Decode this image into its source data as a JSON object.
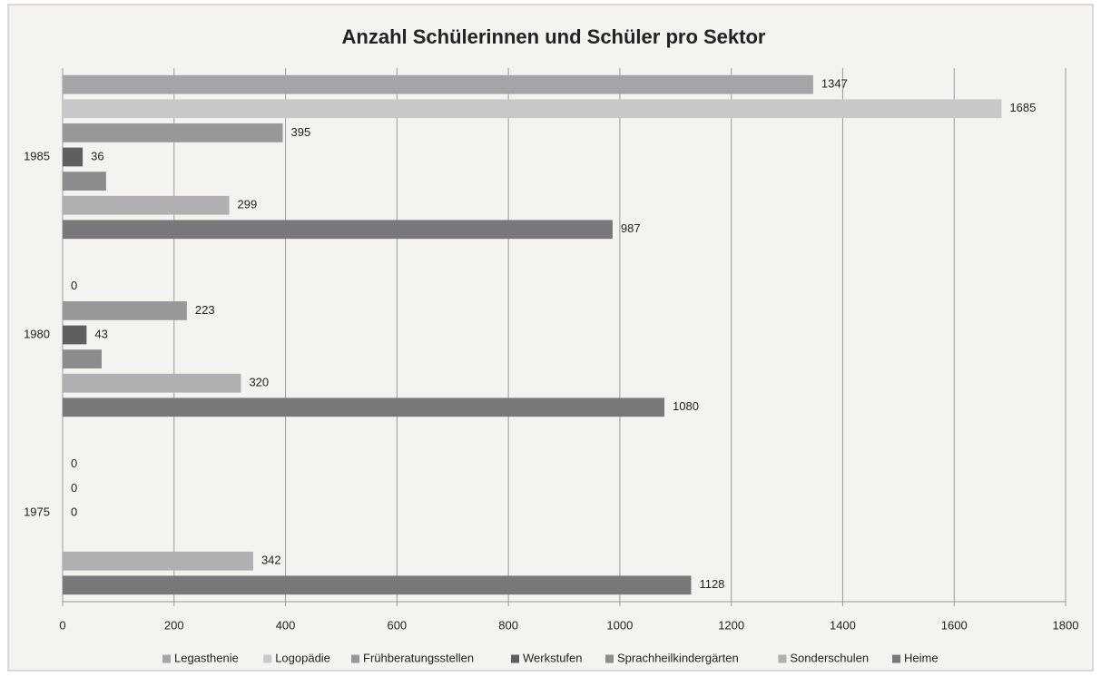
{
  "chart_data": {
    "type": "hbar",
    "title": "Anzahl Schülerinnen und Schüler pro Sektor",
    "categories": [
      "1975",
      "1980",
      "1985"
    ],
    "series": [
      {
        "name": "Legasthenie",
        "color": "#a5a5a7",
        "values": [
          null,
          null,
          1347
        ]
      },
      {
        "name": "Logopädie",
        "color": "#c8c8ca",
        "values": [
          0,
          0,
          1685
        ]
      },
      {
        "name": "Frühberatungsstellen",
        "color": "#98989a",
        "values": [
          0,
          223,
          395
        ]
      },
      {
        "name": "Werkstufen",
        "color": "#5f5f61",
        "values": [
          0,
          43,
          36
        ]
      },
      {
        "name": "Sprachheilkindergärten",
        "color": "#8c8c8e",
        "values": [
          null,
          70,
          78
        ],
        "data_labels": false
      },
      {
        "name": "Sonderschulen",
        "color": "#b0b0b2",
        "values": [
          342,
          320,
          299
        ]
      },
      {
        "name": "Heime",
        "color": "#78787a",
        "values": [
          1128,
          1080,
          987
        ]
      }
    ],
    "xlim": [
      0,
      1800
    ],
    "xticks": [
      0,
      200,
      400,
      600,
      800,
      1000,
      1200,
      1400,
      1600,
      1800
    ],
    "grid": true,
    "legend": "bottom"
  }
}
